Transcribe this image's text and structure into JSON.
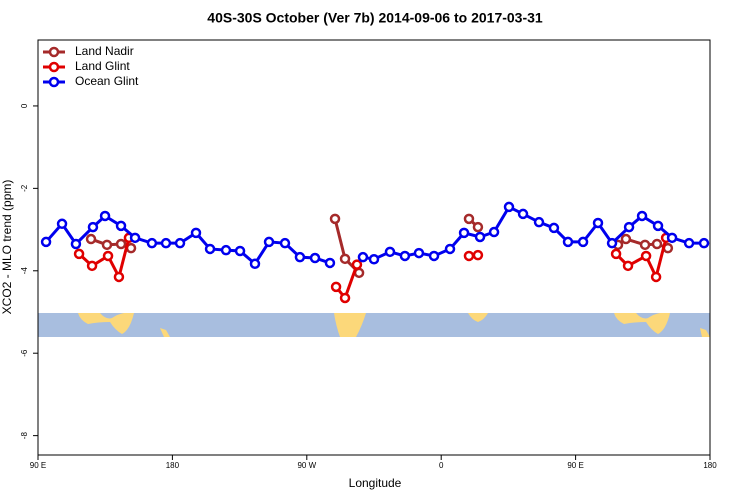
{
  "chart_data": {
    "type": "line",
    "title": "40S-30S October (Ver 7b)   2014-09-06 to 2017-03-31",
    "x_label": "Longitude",
    "y_label": "XCO2 - MLO trend (ppm)",
    "xlim": [
      90,
      540
    ],
    "ylim": [
      -8.47,
      1.6
    ],
    "xticks": [
      {
        "value": 90,
        "label": "90 E"
      },
      180,
      {
        "value": 270,
        "label": "90 W"
      },
      {
        "value": 360,
        "label": "0"
      },
      {
        "value": 450,
        "label": "90 E"
      },
      {
        "value": 540,
        "label": "180"
      }
    ],
    "yticks": [
      0,
      -2,
      -4,
      -6,
      -8
    ],
    "grid": false,
    "legend": "top-left",
    "series": [
      {
        "name": "Land Nadir",
        "color": "#a52a2a",
        "x": [
          125.5,
          136.2,
          145.6,
          152.3,
          null,
          288.9,
          295.6,
          305.0,
          null,
          378.6,
          384.6,
          null,
          478.4,
          483.7,
          496.5,
          504.5,
          511.8
        ],
        "values": [
          -3.23,
          -3.37,
          -3.35,
          -3.45,
          null,
          -2.74,
          -3.71,
          -4.05,
          null,
          -2.74,
          -2.94,
          null,
          -3.37,
          -3.23,
          -3.37,
          -3.35,
          -3.45
        ]
      },
      {
        "name": "Land Glint",
        "color": "#e00000",
        "x": [
          117.5,
          126.2,
          136.9,
          144.2,
          150.9,
          null,
          289.6,
          295.6,
          303.6,
          null,
          378.6,
          384.6,
          null,
          477.1,
          485.1,
          497.2,
          503.9,
          510.6
        ],
        "values": [
          -3.59,
          -3.88,
          -3.64,
          -4.15,
          -3.2,
          null,
          -4.39,
          -4.66,
          -3.85,
          null,
          -3.64,
          -3.62,
          null,
          -3.59,
          -3.88,
          -3.64,
          -4.15,
          -3.2
        ]
      },
      {
        "name": "Ocean Glint",
        "color": "#0000ee",
        "x": [
          95.4,
          106.1,
          115.4,
          126.8,
          134.9,
          145.6,
          155.0,
          166.3,
          175.7,
          185.1,
          195.8,
          205.2,
          215.9,
          225.3,
          235.3,
          244.7,
          255.4,
          265.4,
          275.5,
          285.5,
          null,
          307.6,
          315.0,
          325.7,
          335.7,
          345.1,
          355.2,
          365.9,
          375.3,
          386.0,
          395.4,
          405.4,
          414.8,
          425.5,
          435.5,
          444.9,
          455.0,
          465.0,
          474.4,
          485.8,
          494.5,
          505.2,
          514.6,
          526.0,
          536.0
        ],
        "values": [
          -3.3,
          -2.86,
          -3.35,
          -2.94,
          -2.67,
          -2.91,
          -3.2,
          -3.33,
          -3.33,
          -3.33,
          -3.08,
          -3.47,
          -3.5,
          -3.52,
          -3.83,
          -3.3,
          -3.33,
          -3.67,
          -3.69,
          -3.81,
          null,
          -3.67,
          -3.72,
          -3.54,
          -3.64,
          -3.57,
          -3.64,
          -3.47,
          -3.08,
          -3.18,
          -3.06,
          -2.45,
          -2.62,
          -2.82,
          -2.96,
          -3.3,
          -3.3,
          -2.84,
          -3.33,
          -2.94,
          -2.67,
          -2.91,
          -3.2,
          -3.33,
          -3.33
        ]
      }
    ]
  }
}
